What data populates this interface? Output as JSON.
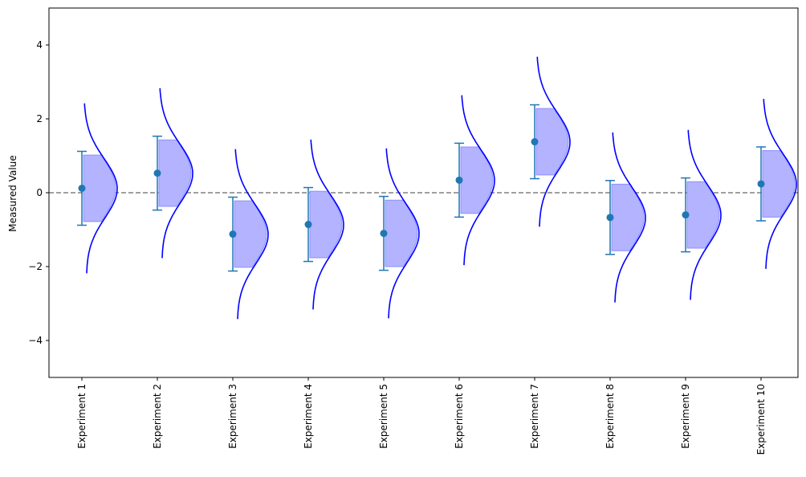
{
  "chart_data": {
    "type": "scatter",
    "title": "",
    "xlabel": "",
    "ylabel": "Measured Value",
    "ylim": [
      -5,
      5
    ],
    "yticks": [
      -4,
      -2,
      0,
      2,
      4
    ],
    "ytick_labels": [
      "−4",
      "−2",
      "0",
      "2",
      "4"
    ],
    "grid": false,
    "reference_line": {
      "y": 0,
      "style": "dashed",
      "color": "#808080"
    },
    "categories": [
      "Experiment 1",
      "Experiment 2",
      "Experiment 3",
      "Experiment 4",
      "Experiment 5",
      "Experiment 6",
      "Experiment 7",
      "Experiment 8",
      "Experiment 9",
      "Experiment 10"
    ],
    "means": [
      0.12,
      0.53,
      -1.12,
      -0.86,
      -1.1,
      0.34,
      1.38,
      -0.67,
      -0.6,
      0.24
    ],
    "error": [
      1.0,
      1.0,
      1.0,
      1.0,
      1.0,
      1.0,
      1.0,
      1.0,
      1.0,
      1.0
    ],
    "curve_spread": 2.3,
    "band_spread": 0.9,
    "colors": {
      "point": "#1f77b4",
      "errorbar": "#1f77b4",
      "curve": "#0000ff",
      "band_fill": "#b3b3ff",
      "band_edge": "#8f8fff"
    }
  }
}
